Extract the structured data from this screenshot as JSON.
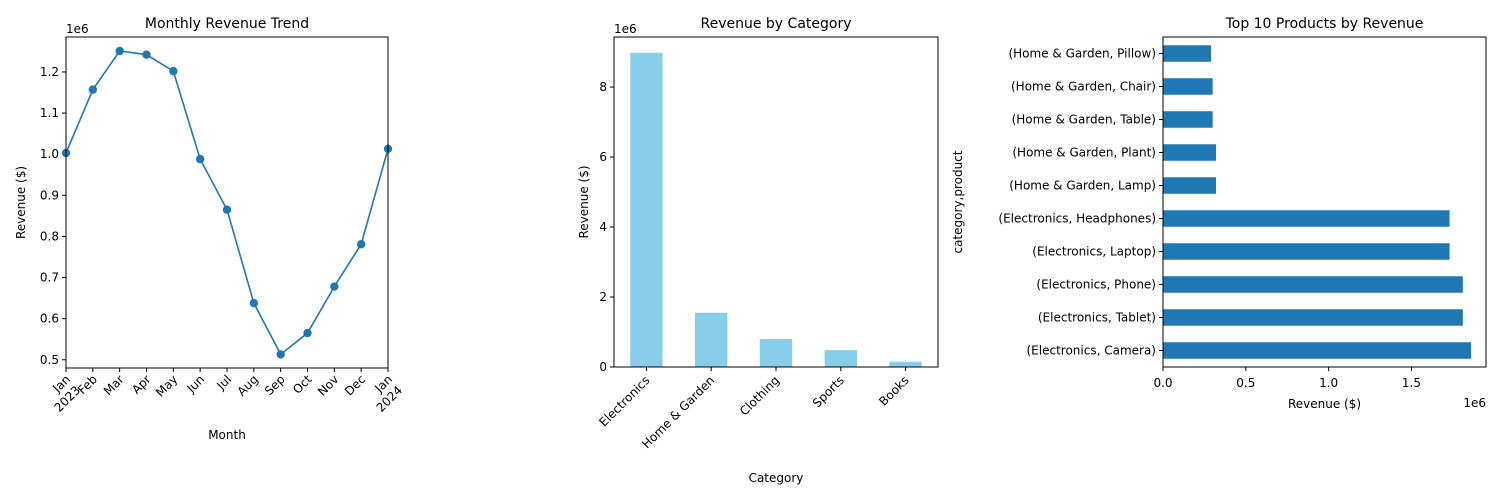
{
  "chart_data": [
    {
      "type": "line",
      "title": "Monthly Revenue Trend",
      "xlabel": "Month",
      "ylabel": "Revenue ($)",
      "y_offset_label": "1e6",
      "x": [
        "2023-01",
        "2023-02",
        "2023-03",
        "2023-04",
        "2023-05",
        "2023-06",
        "2023-07",
        "2023-08",
        "2023-09",
        "2023-10",
        "2023-11",
        "2023-12",
        "2024-01"
      ],
      "x_tick_labels": [
        {
          "month": "Jan",
          "year": "2023"
        },
        {
          "month": "Feb",
          "year": ""
        },
        {
          "month": "Mar",
          "year": ""
        },
        {
          "month": "Apr",
          "year": ""
        },
        {
          "month": "May",
          "year": ""
        },
        {
          "month": "Jun",
          "year": ""
        },
        {
          "month": "Jul",
          "year": ""
        },
        {
          "month": "Aug",
          "year": ""
        },
        {
          "month": "Sep",
          "year": ""
        },
        {
          "month": "Oct",
          "year": ""
        },
        {
          "month": "Nov",
          "year": ""
        },
        {
          "month": "Dec",
          "year": ""
        },
        {
          "month": "Jan",
          "year": "2024"
        }
      ],
      "values": [
        1.003,
        1.157,
        1.251,
        1.242,
        1.202,
        0.988,
        0.865,
        0.638,
        0.513,
        0.565,
        0.678,
        0.781,
        1.013
      ],
      "yticks": [
        "0.5",
        "0.6",
        "0.7",
        "0.8",
        "0.9",
        "1.0",
        "1.1",
        "1.2"
      ],
      "ylim": [
        0.48,
        1.285
      ],
      "color": "#1f77b4",
      "marker": "circle",
      "grid": false
    },
    {
      "type": "bar",
      "title": "Revenue by Category",
      "xlabel": "Category",
      "ylabel": "Revenue ($)",
      "y_offset_label": "1e6",
      "categories": [
        "Electronics",
        "Home & Garden",
        "Clothing",
        "Sports",
        "Books"
      ],
      "values": [
        8.98,
        1.55,
        0.8,
        0.48,
        0.15
      ],
      "yticks": [
        "0",
        "2",
        "4",
        "6",
        "8"
      ],
      "ylim": [
        0,
        9.43
      ],
      "color": "#87ceeb",
      "grid": false
    },
    {
      "type": "bar",
      "orientation": "horizontal",
      "title": "Top 10 Products by Revenue",
      "xlabel": "Revenue ($)",
      "ylabel": "category,product",
      "x_offset_label": "1e6",
      "categories": [
        "(Electronics, Camera)",
        "(Electronics, Tablet)",
        "(Electronics, Phone)",
        "(Electronics, Laptop)",
        "(Electronics, Headphones)",
        "(Home & Garden, Lamp)",
        "(Home & Garden, Plant)",
        "(Home & Garden, Table)",
        "(Home & Garden, Chair)",
        "(Home & Garden, Pillow)"
      ],
      "values": [
        1.86,
        1.81,
        1.81,
        1.73,
        1.73,
        0.32,
        0.32,
        0.3,
        0.3,
        0.29
      ],
      "xticks": [
        "0.0",
        "0.5",
        "1.0",
        "1.5"
      ],
      "xlim": [
        0,
        1.95
      ],
      "color": "#1f77b4",
      "grid": false
    }
  ]
}
